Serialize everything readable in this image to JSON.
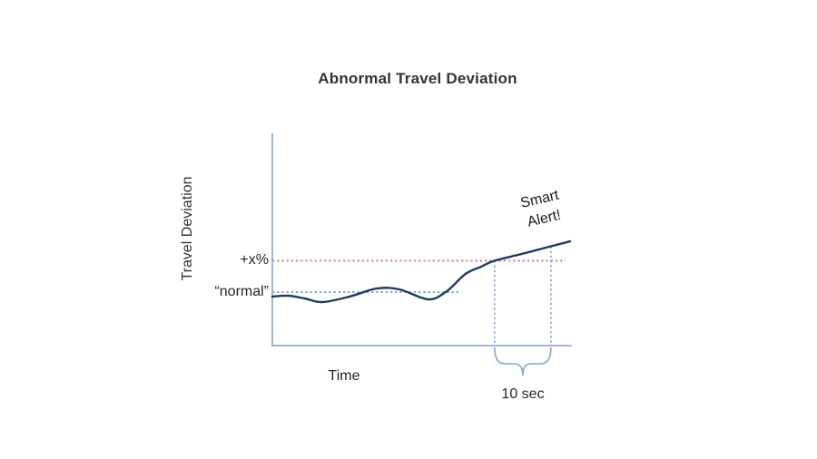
{
  "title": "Abnormal Travel Deviation",
  "axes": {
    "x_label": "Time",
    "y_label": "Travel Deviation"
  },
  "annotations": {
    "threshold_label": "+x%",
    "normal_label": "“normal”",
    "alert_label": "Smart\nAlert!",
    "interval_label": "10 sec"
  },
  "colors": {
    "axis": "#9bb8d8",
    "curve": "#1c3a66",
    "threshold": "#e57878",
    "normal": "#5b8ac5",
    "marker": "#5b8ac5",
    "brace": "#7da7d9",
    "text": "#262626"
  },
  "chart_data": {
    "type": "line",
    "title": "Abnormal Travel Deviation",
    "xlabel": "Time",
    "ylabel": "Travel Deviation",
    "x_range": [
      0,
      100
    ],
    "y_range": [
      0,
      100
    ],
    "grid": false,
    "legend": "none",
    "axis_ticks": "none",
    "series": [
      {
        "name": "travel_deviation",
        "color": "#1c3a66",
        "points": [
          [
            0,
            23.1
          ],
          [
            5.5,
            23.5
          ],
          [
            10.9,
            22.2
          ],
          [
            16.7,
            20.5
          ],
          [
            25.8,
            23.1
          ],
          [
            34.8,
            26.9
          ],
          [
            42.4,
            26.5
          ],
          [
            52.1,
            21.8
          ],
          [
            58.2,
            25.6
          ],
          [
            64.5,
            33.8
          ],
          [
            69.7,
            37.2
          ],
          [
            74.2,
            40.0
          ],
          [
            83.3,
            43.2
          ],
          [
            93.0,
            46.8
          ],
          [
            99.4,
            49.1
          ]
        ]
      }
    ],
    "reference_lines": [
      {
        "name": "threshold",
        "label": "+x%",
        "y": 40.0,
        "x_start": 0,
        "x_end": 97.9,
        "style": "dotted",
        "color": "#e57878",
        "width": 2
      },
      {
        "name": "normal",
        "label": "“normal”",
        "y": 25.2,
        "x_start": 0,
        "x_end": 62.1,
        "style": "dotted",
        "color": "#5b8ac5",
        "width": 1.6
      }
    ],
    "event_markers": [
      {
        "name": "alert-start",
        "x": 74.2,
        "y_top": 40.0
      },
      {
        "name": "alert-end",
        "x": 93.0,
        "y_top": 46.8
      }
    ],
    "interval": {
      "label": "10 sec",
      "x_start": 74.2,
      "x_end": 93.0
    },
    "alert_annotation": {
      "text": "Smart Alert!",
      "rotation_deg": -13,
      "anchor_x": 87,
      "anchor_y": 63
    }
  }
}
